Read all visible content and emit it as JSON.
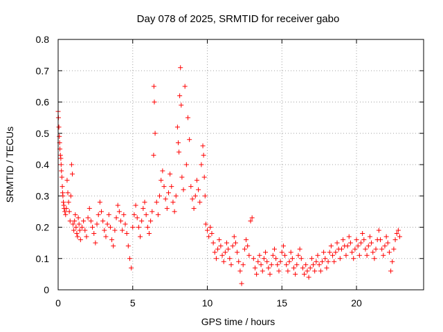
{
  "chart_data": {
    "type": "scatter",
    "title": "Day 078 of 2025, SRMTID for receiver gabo",
    "xlabel": "GPS time / hours",
    "ylabel": "SRMTID / TECUs",
    "xlim": [
      0,
      24.5
    ],
    "ylim": [
      0,
      0.8
    ],
    "xticks": [
      0,
      5,
      10,
      15,
      20
    ],
    "yticks": [
      0,
      0.1,
      0.2,
      0.3,
      0.4,
      0.5,
      0.6,
      0.7,
      0.8
    ],
    "xtick_labels": [
      "0",
      "5",
      "10",
      "15",
      "20"
    ],
    "ytick_labels": [
      "0",
      "0.1",
      "0.2",
      "0.3",
      "0.4",
      "0.5",
      "0.6",
      "0.7",
      "0.8"
    ],
    "grid": true,
    "marker": "+",
    "color": "#ff0000",
    "series": [
      {
        "name": "SRMTID",
        "points": [
          [
            0.0,
            0.57
          ],
          [
            0.02,
            0.55
          ],
          [
            0.05,
            0.52
          ],
          [
            0.08,
            0.49
          ],
          [
            0.1,
            0.47
          ],
          [
            0.12,
            0.45
          ],
          [
            0.15,
            0.43
          ],
          [
            0.18,
            0.42
          ],
          [
            0.2,
            0.4
          ],
          [
            0.22,
            0.38
          ],
          [
            0.25,
            0.36
          ],
          [
            0.28,
            0.33
          ],
          [
            0.3,
            0.31
          ],
          [
            0.32,
            0.3
          ],
          [
            0.35,
            0.28
          ],
          [
            0.38,
            0.27
          ],
          [
            0.4,
            0.26
          ],
          [
            0.45,
            0.25
          ],
          [
            0.5,
            0.24
          ],
          [
            0.55,
            0.26
          ],
          [
            0.6,
            0.35
          ],
          [
            0.65,
            0.31
          ],
          [
            0.7,
            0.28
          ],
          [
            0.75,
            0.25
          ],
          [
            0.8,
            0.22
          ],
          [
            0.85,
            0.3
          ],
          [
            0.9,
            0.4
          ],
          [
            0.95,
            0.37
          ],
          [
            1.0,
            0.21
          ],
          [
            1.05,
            0.19
          ],
          [
            1.1,
            0.22
          ],
          [
            1.15,
            0.24
          ],
          [
            1.2,
            0.2
          ],
          [
            1.25,
            0.18
          ],
          [
            1.3,
            0.17
          ],
          [
            1.35,
            0.23
          ],
          [
            1.4,
            0.21
          ],
          [
            1.45,
            0.19
          ],
          [
            1.5,
            0.16
          ],
          [
            1.6,
            0.2
          ],
          [
            1.7,
            0.22
          ],
          [
            1.8,
            0.19
          ],
          [
            1.9,
            0.17
          ],
          [
            2.0,
            0.23
          ],
          [
            2.1,
            0.26
          ],
          [
            2.2,
            0.22
          ],
          [
            2.3,
            0.2
          ],
          [
            2.4,
            0.18
          ],
          [
            2.5,
            0.15
          ],
          [
            2.6,
            0.21
          ],
          [
            2.7,
            0.24
          ],
          [
            2.8,
            0.28
          ],
          [
            2.9,
            0.25
          ],
          [
            3.0,
            0.22
          ],
          [
            3.1,
            0.19
          ],
          [
            3.2,
            0.17
          ],
          [
            3.3,
            0.21
          ],
          [
            3.4,
            0.24
          ],
          [
            3.5,
            0.2
          ],
          [
            3.6,
            0.16
          ],
          [
            3.7,
            0.14
          ],
          [
            3.8,
            0.19
          ],
          [
            3.9,
            0.23
          ],
          [
            4.0,
            0.27
          ],
          [
            4.1,
            0.25
          ],
          [
            4.2,
            0.22
          ],
          [
            4.3,
            0.19
          ],
          [
            4.4,
            0.24
          ],
          [
            4.5,
            0.21
          ],
          [
            4.6,
            0.18
          ],
          [
            4.7,
            0.14
          ],
          [
            4.8,
            0.1
          ],
          [
            4.9,
            0.07
          ],
          [
            5.0,
            0.2
          ],
          [
            5.1,
            0.24
          ],
          [
            5.2,
            0.27
          ],
          [
            5.3,
            0.23
          ],
          [
            5.4,
            0.2
          ],
          [
            5.5,
            0.17
          ],
          [
            5.6,
            0.22
          ],
          [
            5.7,
            0.26
          ],
          [
            5.8,
            0.28
          ],
          [
            5.9,
            0.24
          ],
          [
            6.0,
            0.2
          ],
          [
            6.1,
            0.18
          ],
          [
            6.2,
            0.22
          ],
          [
            6.3,
            0.25
          ],
          [
            6.4,
            0.43
          ],
          [
            6.42,
            0.65
          ],
          [
            6.45,
            0.6
          ],
          [
            6.5,
            0.5
          ],
          [
            6.6,
            0.28
          ],
          [
            6.7,
            0.24
          ],
          [
            6.8,
            0.3
          ],
          [
            6.9,
            0.35
          ],
          [
            7.0,
            0.38
          ],
          [
            7.1,
            0.33
          ],
          [
            7.2,
            0.29
          ],
          [
            7.3,
            0.26
          ],
          [
            7.4,
            0.31
          ],
          [
            7.5,
            0.37
          ],
          [
            7.6,
            0.33
          ],
          [
            7.7,
            0.28
          ],
          [
            7.8,
            0.25
          ],
          [
            7.9,
            0.3
          ],
          [
            8.0,
            0.52
          ],
          [
            8.05,
            0.47
          ],
          [
            8.1,
            0.44
          ],
          [
            8.15,
            0.62
          ],
          [
            8.2,
            0.71
          ],
          [
            8.25,
            0.59
          ],
          [
            8.3,
            0.36
          ],
          [
            8.4,
            0.32
          ],
          [
            8.5,
            0.65
          ],
          [
            8.6,
            0.4
          ],
          [
            8.7,
            0.55
          ],
          [
            8.8,
            0.48
          ],
          [
            8.9,
            0.33
          ],
          [
            9.0,
            0.29
          ],
          [
            9.1,
            0.26
          ],
          [
            9.2,
            0.3
          ],
          [
            9.3,
            0.35
          ],
          [
            9.4,
            0.32
          ],
          [
            9.5,
            0.28
          ],
          [
            9.6,
            0.4
          ],
          [
            9.7,
            0.46
          ],
          [
            9.75,
            0.43
          ],
          [
            9.8,
            0.36
          ],
          [
            9.85,
            0.3
          ],
          [
            9.9,
            0.21
          ],
          [
            10.0,
            0.19
          ],
          [
            10.1,
            0.17
          ],
          [
            10.2,
            0.2
          ],
          [
            10.3,
            0.18
          ],
          [
            10.4,
            0.15
          ],
          [
            10.5,
            0.12
          ],
          [
            10.6,
            0.1
          ],
          [
            10.7,
            0.13
          ],
          [
            10.8,
            0.16
          ],
          [
            10.9,
            0.14
          ],
          [
            11.0,
            0.11
          ],
          [
            11.1,
            0.09
          ],
          [
            11.2,
            0.12
          ],
          [
            11.3,
            0.15
          ],
          [
            11.4,
            0.13
          ],
          [
            11.5,
            0.1
          ],
          [
            11.6,
            0.08
          ],
          [
            11.7,
            0.14
          ],
          [
            11.8,
            0.17
          ],
          [
            11.9,
            0.15
          ],
          [
            12.0,
            0.12
          ],
          [
            12.1,
            0.09
          ],
          [
            12.2,
            0.06
          ],
          [
            12.3,
            0.02
          ],
          [
            12.4,
            0.08
          ],
          [
            12.5,
            0.13
          ],
          [
            12.6,
            0.16
          ],
          [
            12.7,
            0.14
          ],
          [
            12.8,
            0.11
          ],
          [
            12.9,
            0.22
          ],
          [
            13.0,
            0.23
          ],
          [
            13.1,
            0.1
          ],
          [
            13.2,
            0.07
          ],
          [
            13.3,
            0.05
          ],
          [
            13.4,
            0.09
          ],
          [
            13.5,
            0.11
          ],
          [
            13.6,
            0.08
          ],
          [
            13.7,
            0.06
          ],
          [
            13.8,
            0.1
          ],
          [
            13.9,
            0.12
          ],
          [
            14.0,
            0.09
          ],
          [
            14.1,
            0.07
          ],
          [
            14.2,
            0.05
          ],
          [
            14.3,
            0.08
          ],
          [
            14.4,
            0.11
          ],
          [
            14.5,
            0.13
          ],
          [
            14.6,
            0.1
          ],
          [
            14.7,
            0.08
          ],
          [
            14.8,
            0.06
          ],
          [
            14.9,
            0.09
          ],
          [
            15.0,
            0.12
          ],
          [
            15.1,
            0.14
          ],
          [
            15.2,
            0.11
          ],
          [
            15.3,
            0.08
          ],
          [
            15.4,
            0.06
          ],
          [
            15.5,
            0.09
          ],
          [
            15.6,
            0.12
          ],
          [
            15.7,
            0.1
          ],
          [
            15.8,
            0.07
          ],
          [
            15.9,
            0.05
          ],
          [
            16.0,
            0.08
          ],
          [
            16.1,
            0.11
          ],
          [
            16.2,
            0.13
          ],
          [
            16.3,
            0.1
          ],
          [
            16.4,
            0.07
          ],
          [
            16.5,
            0.05
          ],
          [
            16.6,
            0.08
          ],
          [
            16.7,
            0.06
          ],
          [
            16.8,
            0.04
          ],
          [
            16.9,
            0.07
          ],
          [
            17.0,
            0.1
          ],
          [
            17.1,
            0.08
          ],
          [
            17.2,
            0.06
          ],
          [
            17.3,
            0.09
          ],
          [
            17.4,
            0.11
          ],
          [
            17.5,
            0.08
          ],
          [
            17.6,
            0.06
          ],
          [
            17.7,
            0.09
          ],
          [
            17.8,
            0.12
          ],
          [
            17.9,
            0.1
          ],
          [
            18.0,
            0.07
          ],
          [
            18.1,
            0.09
          ],
          [
            18.2,
            0.12
          ],
          [
            18.3,
            0.14
          ],
          [
            18.4,
            0.11
          ],
          [
            18.5,
            0.09
          ],
          [
            18.6,
            0.12
          ],
          [
            18.7,
            0.15
          ],
          [
            18.8,
            0.13
          ],
          [
            18.9,
            0.1
          ],
          [
            19.0,
            0.13
          ],
          [
            19.1,
            0.16
          ],
          [
            19.2,
            0.14
          ],
          [
            19.3,
            0.11
          ],
          [
            19.4,
            0.14
          ],
          [
            19.5,
            0.17
          ],
          [
            19.6,
            0.15
          ],
          [
            19.7,
            0.12
          ],
          [
            19.8,
            0.1
          ],
          [
            19.9,
            0.13
          ],
          [
            20.0,
            0.16
          ],
          [
            20.1,
            0.14
          ],
          [
            20.2,
            0.11
          ],
          [
            20.3,
            0.15
          ],
          [
            20.4,
            0.18
          ],
          [
            20.5,
            0.16
          ],
          [
            20.6,
            0.13
          ],
          [
            20.7,
            0.11
          ],
          [
            20.8,
            0.14
          ],
          [
            20.9,
            0.17
          ],
          [
            21.0,
            0.15
          ],
          [
            21.1,
            0.12
          ],
          [
            21.2,
            0.1
          ],
          [
            21.3,
            0.13
          ],
          [
            21.4,
            0.16
          ],
          [
            21.5,
            0.19
          ],
          [
            21.6,
            0.16
          ],
          [
            21.7,
            0.13
          ],
          [
            21.8,
            0.11
          ],
          [
            21.9,
            0.14
          ],
          [
            22.0,
            0.17
          ],
          [
            22.1,
            0.15
          ],
          [
            22.2,
            0.12
          ],
          [
            22.3,
            0.06
          ],
          [
            22.4,
            0.09
          ],
          [
            22.5,
            0.13
          ],
          [
            22.6,
            0.16
          ],
          [
            22.7,
            0.18
          ],
          [
            22.8,
            0.19
          ],
          [
            22.9,
            0.17
          ]
        ]
      }
    ]
  }
}
